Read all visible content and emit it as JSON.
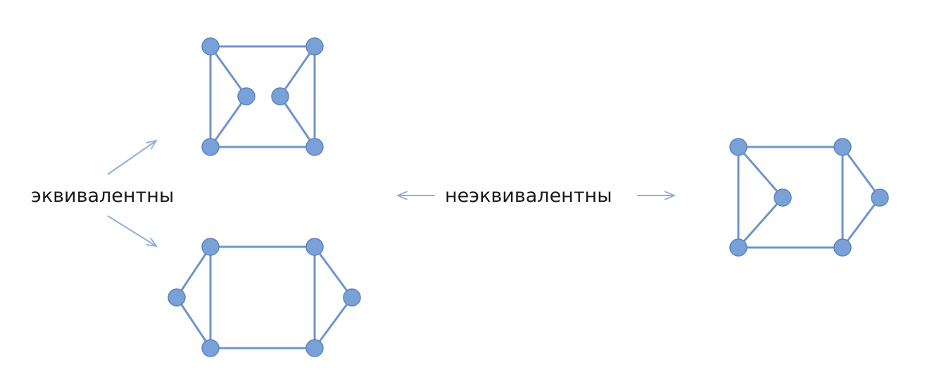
{
  "labels": {
    "equivalent": "эквивалентны",
    "non_equivalent": "неэквивалентны"
  },
  "colors": {
    "node_fill": "#7aa0d8",
    "node_stroke": "#5c84c0",
    "edge": "#6f94cc",
    "arrow": "#8fb0dc",
    "text": "#1a1a1a"
  },
  "graphs": [
    {
      "id": "graph-top",
      "nodes": [
        "a",
        "b",
        "c",
        "d",
        "e",
        "f"
      ],
      "edges": [
        [
          "a",
          "b"
        ],
        [
          "a",
          "c"
        ],
        [
          "b",
          "d"
        ],
        [
          "c",
          "d"
        ],
        [
          "a",
          "e"
        ],
        [
          "c",
          "e"
        ],
        [
          "b",
          "f"
        ],
        [
          "d",
          "f"
        ]
      ]
    },
    {
      "id": "graph-bottom",
      "nodes": [
        "a",
        "b",
        "c",
        "d",
        "e",
        "f"
      ],
      "edges": [
        [
          "a",
          "b"
        ],
        [
          "a",
          "c"
        ],
        [
          "b",
          "d"
        ],
        [
          "c",
          "d"
        ],
        [
          "a",
          "e"
        ],
        [
          "c",
          "e"
        ],
        [
          "b",
          "f"
        ],
        [
          "d",
          "f"
        ]
      ]
    },
    {
      "id": "graph-right",
      "nodes": [
        "a",
        "b",
        "c",
        "d",
        "e",
        "f"
      ],
      "edges": [
        [
          "a",
          "b"
        ],
        [
          "a",
          "c"
        ],
        [
          "b",
          "d"
        ],
        [
          "c",
          "d"
        ],
        [
          "a",
          "e"
        ],
        [
          "c",
          "e"
        ],
        [
          "b",
          "f"
        ],
        [
          "d",
          "f"
        ]
      ]
    }
  ]
}
